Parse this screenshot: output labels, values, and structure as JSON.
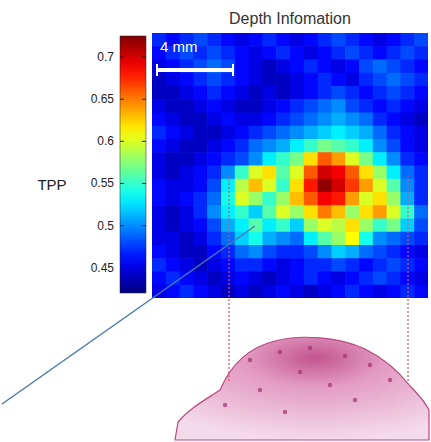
{
  "chart_data": {
    "type": "heatmap",
    "title": "Depth Infomation",
    "colorbar_label": "TPP",
    "annotations": [
      "4 mm"
    ],
    "tick_labels": false,
    "color_range": [
      0.42,
      0.725
    ],
    "color_ticks": [
      0.45,
      0.5,
      0.55,
      0.6,
      0.65,
      0.7
    ],
    "cells": [
      [
        0.47,
        0.46,
        0.47,
        0.48,
        0.47,
        0.46,
        0.45,
        0.46,
        0.47,
        0.46,
        0.45,
        0.46,
        0.47,
        0.48,
        0.47,
        0.46,
        0.45,
        0.46,
        0.47,
        0.48
      ],
      [
        0.46,
        0.47,
        0.48,
        0.47,
        0.48,
        0.47,
        0.46,
        0.45,
        0.46,
        0.47,
        0.46,
        0.45,
        0.46,
        0.47,
        0.48,
        0.47,
        0.46,
        0.47,
        0.48,
        0.47
      ],
      [
        0.45,
        0.46,
        0.47,
        0.48,
        0.49,
        0.48,
        0.46,
        0.45,
        0.44,
        0.45,
        0.46,
        0.47,
        0.46,
        0.45,
        0.46,
        0.48,
        0.49,
        0.48,
        0.47,
        0.46
      ],
      [
        0.44,
        0.45,
        0.46,
        0.47,
        0.48,
        0.47,
        0.46,
        0.45,
        0.44,
        0.44,
        0.45,
        0.46,
        0.47,
        0.46,
        0.45,
        0.47,
        0.48,
        0.49,
        0.48,
        0.47
      ],
      [
        0.44,
        0.44,
        0.45,
        0.46,
        0.47,
        0.46,
        0.45,
        0.44,
        0.45,
        0.44,
        0.45,
        0.46,
        0.47,
        0.48,
        0.47,
        0.46,
        0.47,
        0.48,
        0.47,
        0.46
      ],
      [
        0.45,
        0.44,
        0.44,
        0.45,
        0.46,
        0.45,
        0.44,
        0.44,
        0.45,
        0.46,
        0.47,
        0.48,
        0.49,
        0.5,
        0.48,
        0.47,
        0.46,
        0.47,
        0.46,
        0.45
      ],
      [
        0.46,
        0.45,
        0.44,
        0.44,
        0.45,
        0.46,
        0.45,
        0.45,
        0.46,
        0.47,
        0.48,
        0.49,
        0.5,
        0.51,
        0.5,
        0.49,
        0.47,
        0.46,
        0.45,
        0.44
      ],
      [
        0.47,
        0.46,
        0.45,
        0.44,
        0.44,
        0.45,
        0.46,
        0.47,
        0.48,
        0.49,
        0.5,
        0.51,
        0.52,
        0.53,
        0.52,
        0.51,
        0.49,
        0.47,
        0.46,
        0.45
      ],
      [
        0.46,
        0.45,
        0.44,
        0.44,
        0.45,
        0.46,
        0.47,
        0.49,
        0.5,
        0.51,
        0.53,
        0.55,
        0.57,
        0.56,
        0.55,
        0.53,
        0.5,
        0.48,
        0.46,
        0.45
      ],
      [
        0.45,
        0.44,
        0.44,
        0.45,
        0.46,
        0.47,
        0.48,
        0.5,
        0.53,
        0.55,
        0.57,
        0.62,
        0.66,
        0.64,
        0.6,
        0.57,
        0.53,
        0.5,
        0.47,
        0.46
      ],
      [
        0.45,
        0.44,
        0.45,
        0.46,
        0.47,
        0.5,
        0.55,
        0.6,
        0.62,
        0.56,
        0.6,
        0.66,
        0.7,
        0.69,
        0.66,
        0.62,
        0.58,
        0.53,
        0.49,
        0.47
      ],
      [
        0.46,
        0.45,
        0.45,
        0.46,
        0.48,
        0.53,
        0.59,
        0.63,
        0.6,
        0.55,
        0.62,
        0.68,
        0.72,
        0.7,
        0.67,
        0.64,
        0.6,
        0.56,
        0.5,
        0.47
      ],
      [
        0.46,
        0.45,
        0.46,
        0.47,
        0.49,
        0.54,
        0.6,
        0.58,
        0.55,
        0.58,
        0.63,
        0.66,
        0.69,
        0.68,
        0.64,
        0.6,
        0.62,
        0.58,
        0.51,
        0.47
      ],
      [
        0.45,
        0.44,
        0.45,
        0.47,
        0.5,
        0.53,
        0.55,
        0.52,
        0.56,
        0.6,
        0.58,
        0.62,
        0.65,
        0.63,
        0.58,
        0.62,
        0.64,
        0.6,
        0.55,
        0.49
      ],
      [
        0.45,
        0.44,
        0.45,
        0.46,
        0.48,
        0.51,
        0.53,
        0.56,
        0.53,
        0.55,
        0.52,
        0.58,
        0.6,
        0.59,
        0.62,
        0.58,
        0.55,
        0.57,
        0.52,
        0.48
      ],
      [
        0.45,
        0.45,
        0.44,
        0.45,
        0.47,
        0.49,
        0.52,
        0.54,
        0.51,
        0.5,
        0.49,
        0.53,
        0.56,
        0.58,
        0.61,
        0.54,
        0.5,
        0.49,
        0.48,
        0.47
      ],
      [
        0.46,
        0.45,
        0.44,
        0.44,
        0.46,
        0.47,
        0.49,
        0.5,
        0.48,
        0.47,
        0.47,
        0.48,
        0.5,
        0.52,
        0.51,
        0.49,
        0.48,
        0.47,
        0.46,
        0.45
      ],
      [
        0.47,
        0.46,
        0.45,
        0.44,
        0.45,
        0.46,
        0.47,
        0.47,
        0.46,
        0.45,
        0.46,
        0.47,
        0.47,
        0.48,
        0.47,
        0.46,
        0.47,
        0.48,
        0.47,
        0.46
      ],
      [
        0.46,
        0.47,
        0.46,
        0.45,
        0.44,
        0.45,
        0.46,
        0.45,
        0.44,
        0.45,
        0.46,
        0.47,
        0.46,
        0.45,
        0.46,
        0.47,
        0.48,
        0.47,
        0.46,
        0.45
      ],
      [
        0.45,
        0.46,
        0.47,
        0.46,
        0.45,
        0.44,
        0.45,
        0.44,
        0.45,
        0.46,
        0.45,
        0.44,
        0.45,
        0.46,
        0.47,
        0.46,
        0.45,
        0.46,
        0.47,
        0.46
      ]
    ]
  }
}
